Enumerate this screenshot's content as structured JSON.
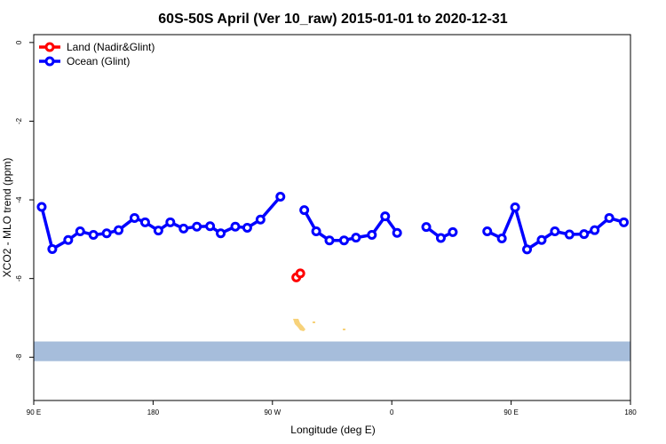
{
  "chart_data": {
    "type": "line",
    "title": "60S-50S April (Ver 10_raw)   2015-01-01 to 2020-12-31",
    "xlabel": "Longitude (deg E)",
    "ylabel": "XCO2 - MLO trend (ppm)",
    "xlim": [
      90,
      540
    ],
    "ylim": [
      -9.1,
      0.2
    ],
    "x_ticks": [
      {
        "value": 90,
        "label": "90 E"
      },
      {
        "value": 180,
        "label": "180"
      },
      {
        "value": 270,
        "label": "90 W"
      },
      {
        "value": 360,
        "label": "0"
      },
      {
        "value": 450,
        "label": "90 E"
      },
      {
        "value": 540,
        "label": "180"
      }
    ],
    "y_ticks": [
      {
        "value": 0,
        "label": "0"
      },
      {
        "value": -2,
        "label": "-2"
      },
      {
        "value": -4,
        "label": "-4"
      },
      {
        "value": -6,
        "label": "-6"
      },
      {
        "value": -8,
        "label": "-8"
      }
    ],
    "legend_position": "top-left",
    "ocean_band": {
      "y_top": -7.6,
      "y_bottom": -8.1,
      "color": "#a6bddb"
    },
    "land_color": "#f7d27a",
    "series": [
      {
        "name": "Land (Nadir&Glint)",
        "color": "#ff0000",
        "segments": [
          [
            [
              288,
              -5.97
            ],
            [
              291,
              -5.87
            ]
          ]
        ]
      },
      {
        "name": "Ocean (Glint)",
        "color": "#0000ff",
        "segments": [
          [
            [
              96,
              -4.18
            ],
            [
              104,
              -5.25
            ],
            [
              116,
              -5.02
            ],
            [
              125,
              -4.8
            ],
            [
              135,
              -4.89
            ],
            [
              145,
              -4.85
            ],
            [
              154,
              -4.77
            ],
            [
              166,
              -4.46
            ],
            [
              174,
              -4.57
            ],
            [
              184,
              -4.78
            ],
            [
              193,
              -4.57
            ],
            [
              203,
              -4.73
            ],
            [
              213,
              -4.68
            ],
            [
              223,
              -4.67
            ],
            [
              231,
              -4.85
            ],
            [
              242,
              -4.68
            ],
            [
              251,
              -4.71
            ],
            [
              261,
              -4.5
            ],
            [
              276,
              -3.92
            ]
          ],
          [
            [
              294,
              -4.26
            ],
            [
              303,
              -4.8
            ],
            [
              313,
              -5.03
            ],
            [
              324,
              -5.03
            ],
            [
              333,
              -4.96
            ],
            [
              345,
              -4.89
            ],
            [
              355,
              -4.42
            ],
            [
              364,
              -4.84
            ]
          ],
          [
            [
              386,
              -4.69
            ],
            [
              397,
              -4.97
            ],
            [
              406,
              -4.82
            ]
          ],
          [
            [
              432,
              -4.8
            ],
            [
              443,
              -4.98
            ],
            [
              453,
              -4.19
            ],
            [
              462,
              -5.26
            ],
            [
              473,
              -5.02
            ],
            [
              483,
              -4.8
            ],
            [
              494,
              -4.88
            ],
            [
              505,
              -4.87
            ],
            [
              513,
              -4.77
            ],
            [
              524,
              -4.46
            ],
            [
              535,
              -4.57
            ]
          ]
        ]
      }
    ]
  }
}
